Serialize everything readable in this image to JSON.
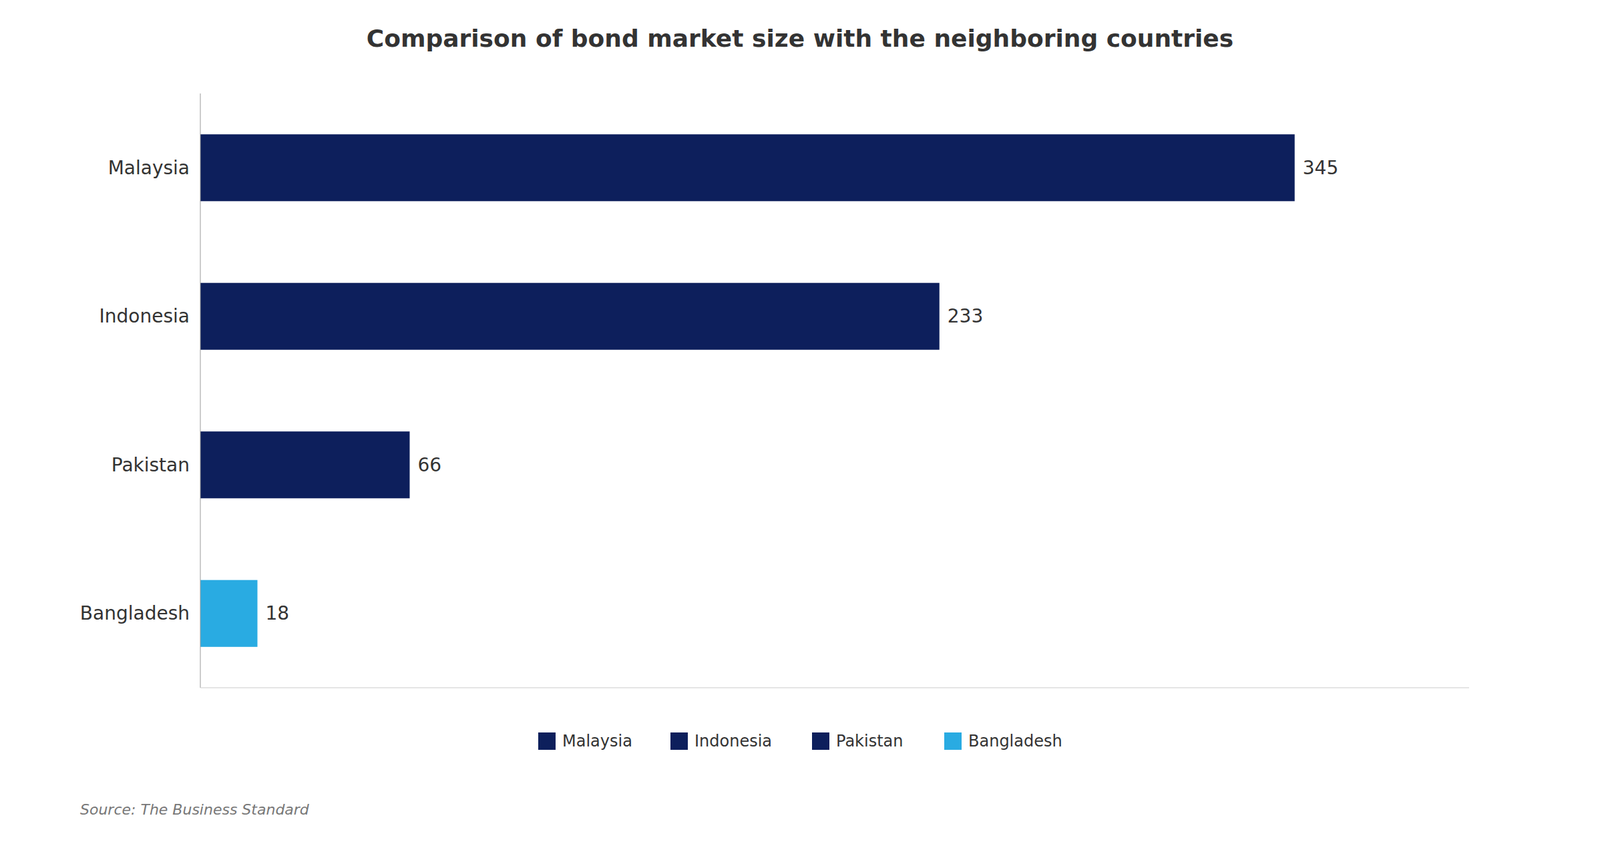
{
  "chart_data": {
    "type": "bar",
    "orientation": "horizontal",
    "title": "Comparison of bond market size with the neighboring countries",
    "categories": [
      "Malaysia",
      "Indonesia",
      "Pakistan",
      "Bangladesh"
    ],
    "values": [
      345,
      233,
      66,
      18
    ],
    "colors": [
      "#0d1f5c",
      "#0d1f5c",
      "#0d1f5c",
      "#29abe2"
    ],
    "xlim": [
      0,
      400
    ],
    "tick_labels": "y",
    "data_labels": true,
    "legend": "bottom",
    "grid": false,
    "annotations": [
      "Source: The Business Standard"
    ]
  }
}
